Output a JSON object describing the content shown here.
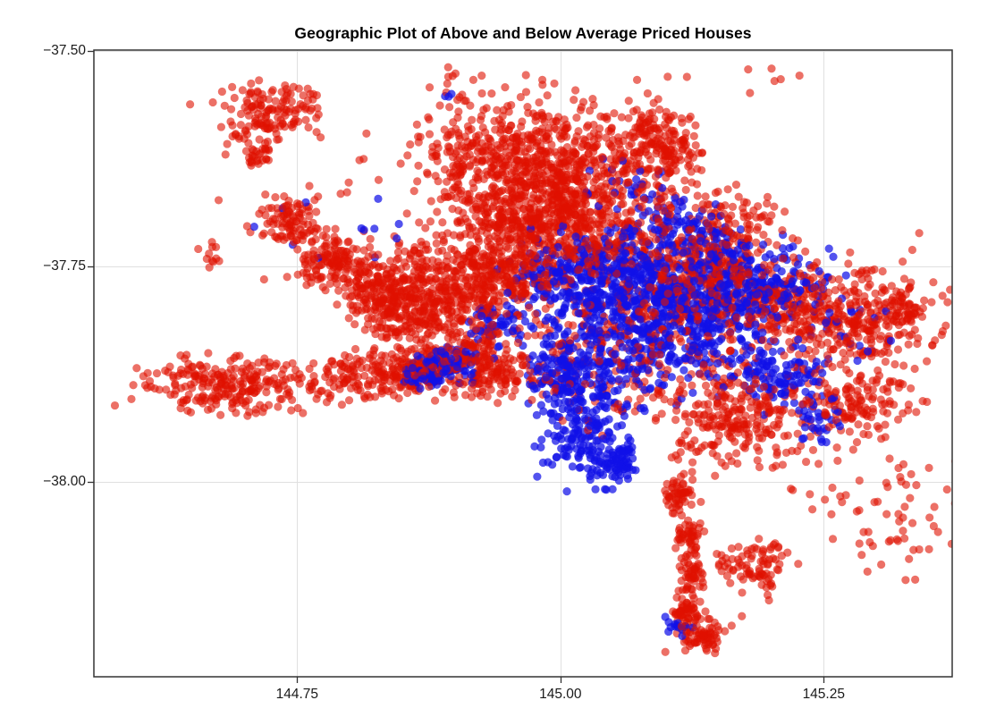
{
  "figure": {
    "background": "#ffffff"
  },
  "chart_data": {
    "type": "scatter",
    "title": "Geographic Plot of Above and Below Average Priced Houses",
    "xlabel": "",
    "ylabel": "",
    "xlim": [
      144.557,
      145.372
    ],
    "ylim": [
      -38.226,
      -37.499
    ],
    "x_ticks": [
      {
        "value": 144.75,
        "label": "144.75"
      },
      {
        "value": 145.0,
        "label": "145.00"
      },
      {
        "value": 145.25,
        "label": "145.25"
      }
    ],
    "y_ticks": [
      {
        "value": -37.5,
        "label": "−37.50"
      },
      {
        "value": -37.75,
        "label": "−37.75"
      },
      {
        "value": -38.0,
        "label": "−38.00"
      }
    ],
    "grid": true,
    "grid_color": "#e0e0e0",
    "axis_color": "#333333",
    "tick_label_color": "#1a1a1a",
    "marker_radius_px": 4.6,
    "seed": 7,
    "cluster_format": [
      "lon_center",
      "lat_center",
      "sd_lon",
      "sd_lat",
      "n_points"
    ],
    "series": [
      {
        "name": "below-average-price",
        "color": "#e01000",
        "alpha": 0.6,
        "clusters": [
          [
            144.7228,
            -37.5736,
            0.0221,
            0.0166,
            140
          ],
          [
            144.711,
            -37.6223,
            0.0076,
            0.0083,
            28
          ],
          [
            144.9435,
            -37.6254,
            0.039,
            0.0373,
            420
          ],
          [
            145.0539,
            -37.6326,
            0.0424,
            0.0394,
            380
          ],
          [
            145.1006,
            -37.6067,
            0.0153,
            0.0166,
            90
          ],
          [
            145.16,
            -37.6928,
            0.0238,
            0.0155,
            70
          ],
          [
            144.7415,
            -37.6969,
            0.0136,
            0.0135,
            90
          ],
          [
            144.784,
            -37.7435,
            0.017,
            0.0166,
            140
          ],
          [
            144.8289,
            -37.7829,
            0.0187,
            0.0187,
            150
          ],
          [
            144.8782,
            -37.7829,
            0.034,
            0.0342,
            450
          ],
          [
            144.8247,
            -37.8762,
            0.0238,
            0.0135,
            140
          ],
          [
            144.6931,
            -37.8886,
            0.0441,
            0.0155,
            260
          ],
          [
            145.0115,
            -37.7187,
            0.0467,
            0.0249,
            300
          ],
          [
            145.1431,
            -37.7601,
            0.0357,
            0.029,
            330
          ],
          [
            145.2746,
            -37.814,
            0.0357,
            0.0269,
            280
          ],
          [
            145.1643,
            -37.9259,
            0.0323,
            0.029,
            240
          ],
          [
            145.2814,
            -37.9093,
            0.0272,
            0.0207,
            140
          ],
          [
            145.1855,
            -38.099,
            0.017,
            0.0145,
            85
          ],
          [
            145.1133,
            -38.0192,
            0.0076,
            0.0124,
            55
          ],
          [
            145.1218,
            -38.0627,
            0.0068,
            0.0104,
            45
          ],
          [
            145.1252,
            -38.1062,
            0.0068,
            0.0104,
            45
          ],
          [
            145.1201,
            -38.1477,
            0.0076,
            0.0104,
            55
          ],
          [
            145.1354,
            -38.1788,
            0.0136,
            0.0104,
            70
          ],
          [
            145.0624,
            -37.8347,
            0.0637,
            0.0466,
            330
          ],
          [
            144.9096,
            -37.8534,
            0.0204,
            0.0207,
            130
          ],
          [
            144.8671,
            -37.872,
            0.0136,
            0.0104,
            70
          ],
          [
            145.3043,
            -38.0213,
            0.0382,
            0.0415,
            55
          ],
          [
            144.7568,
            -37.6793,
            0.0594,
            0.057,
            25
          ],
          [
            145.343,
            -38.0627,
            0.0212,
            0.0466,
            16
          ],
          [
            145.334,
            -37.7829,
            0.0212,
            0.0415,
            25
          ],
          [
            144.9266,
            -37.5446,
            0.034,
            0.0187,
            12
          ],
          [
            144.6719,
            -37.7383,
            0.0068,
            0.0062,
            10
          ],
          [
            145.3213,
            -37.7953,
            0.0119,
            0.0104,
            45
          ],
          [
            145.2152,
            -37.7933,
            0.0212,
            0.0207,
            110
          ],
          [
            144.9393,
            -37.8762,
            0.0212,
            0.0124,
            90
          ],
          [
            144.9435,
            -37.7622,
            0.0238,
            0.0228,
            200
          ],
          [
            144.9945,
            -37.6586,
            0.0255,
            0.0259,
            150
          ],
          [
            144.969,
            -37.6896,
            0.0297,
            0.0207,
            180
          ],
          [
            145.1999,
            -37.5311,
            0.0119,
            0.0093,
            6
          ]
        ]
      },
      {
        "name": "above-average-price",
        "color": "#1010e8",
        "alpha": 0.72,
        "clusters": [
          [
            145.0879,
            -37.8036,
            0.0552,
            0.0435,
            850
          ],
          [
            145.0454,
            -37.7539,
            0.0408,
            0.0187,
            220
          ],
          [
            145.1914,
            -37.7746,
            0.0323,
            0.0228,
            220
          ],
          [
            145.0242,
            -37.9259,
            0.0221,
            0.0332,
            230
          ],
          [
            145.0522,
            -37.9777,
            0.011,
            0.0124,
            70
          ],
          [
            144.8926,
            -37.8658,
            0.017,
            0.0104,
            90
          ],
          [
            144.9402,
            -37.814,
            0.0136,
            0.0124,
            50
          ],
          [
            145.1473,
            -37.7187,
            0.0187,
            0.0166,
            70
          ],
          [
            145.2084,
            -37.8762,
            0.0221,
            0.0166,
            110
          ],
          [
            145.2457,
            -37.9259,
            0.0119,
            0.0124,
            35
          ],
          [
            145.1116,
            -38.1663,
            0.0068,
            0.0093,
            14
          ],
          [
            145.2789,
            -37.8264,
            0.0212,
            0.0187,
            18
          ],
          [
            144.7823,
            -37.7207,
            0.034,
            0.0311,
            12
          ],
          [
            144.8926,
            -37.5518,
            0.0042,
            0.0041,
            3
          ],
          [
            145.0624,
            -37.6586,
            0.0255,
            0.0207,
            25
          ],
          [
            144.9987,
            -37.871,
            0.0153,
            0.0155,
            90
          ],
          [
            144.8714,
            -37.8762,
            0.0102,
            0.0083,
            40
          ],
          [
            145.1006,
            -37.6896,
            0.0153,
            0.0145,
            40
          ]
        ]
      }
    ]
  }
}
